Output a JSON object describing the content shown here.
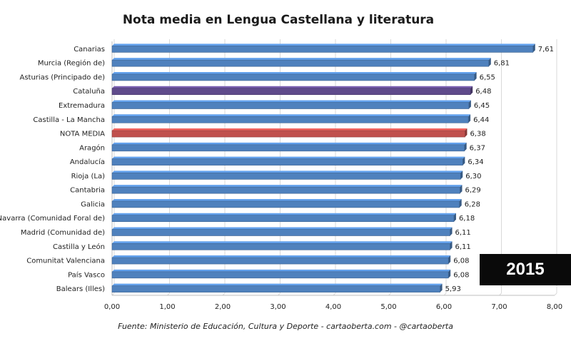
{
  "chart_data": {
    "type": "bar",
    "orientation": "horizontal",
    "title": "Nota media en Lengua Castellana y literatura",
    "categories": [
      "Canarias",
      "Murcia (Región de)",
      "Asturias (Principado de)",
      "Cataluña",
      "Extremadura",
      "Castilla - La Mancha",
      "NOTA MEDIA",
      "Aragón",
      "Andalucía",
      "Rioja (La)",
      "Cantabria",
      "Galicia",
      "Navarra (Comunidad Foral de)",
      "Madrid (Comunidad de)",
      "Castilla y León",
      "Comunitat Valenciana",
      "País Vasco",
      "Balears (Illes)"
    ],
    "values": [
      7.61,
      6.81,
      6.55,
      6.48,
      6.45,
      6.44,
      6.38,
      6.37,
      6.34,
      6.3,
      6.29,
      6.28,
      6.18,
      6.11,
      6.11,
      6.08,
      6.08,
      5.93
    ],
    "value_labels": [
      "7,61",
      "6,81",
      "6,55",
      "6,48",
      "6,45",
      "6,44",
      "6,38",
      "6,37",
      "6,34",
      "6,30",
      "6,29",
      "6,28",
      "6,18",
      "6,11",
      "6,11",
      "6,08",
      "6,08",
      "5,93"
    ],
    "bar_colors": [
      "#4f81bd",
      "#4f81bd",
      "#4f81bd",
      "#5f4b8b",
      "#4f81bd",
      "#4f81bd",
      "#c0504d",
      "#4f81bd",
      "#4f81bd",
      "#4f81bd",
      "#4f81bd",
      "#4f81bd",
      "#4f81bd",
      "#4f81bd",
      "#4f81bd",
      "#4f81bd",
      "#4f81bd",
      "#4f81bd"
    ],
    "xlim": [
      0,
      8
    ],
    "x_ticks": [
      "0,00",
      "1,00",
      "2,00",
      "3,00",
      "4,00",
      "5,00",
      "6,00",
      "7,00",
      "8,00"
    ],
    "grid": true,
    "legend": false
  },
  "badge": {
    "label": "2015"
  },
  "source": "Fuente: Ministerio de Educación, Cultura y Deporte - cartaoberta.com - @cartaoberta"
}
